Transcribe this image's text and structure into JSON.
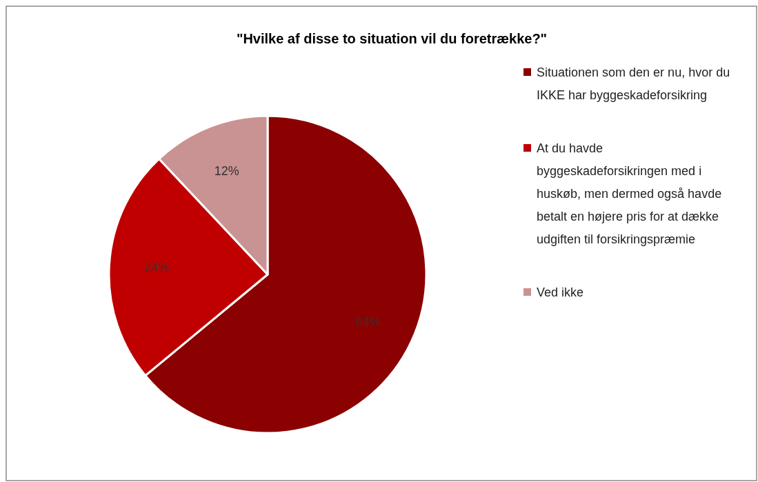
{
  "chart_data": {
    "type": "pie",
    "title": "\"Hvilke af disse to situation vil du foretrække?\"",
    "categories": [
      "Situationen som den er nu, hvor du IKKE har byggeskadeforsikring",
      "At du havde byggeskadeforsikringen med i huskøb, men dermed også havde betalt en højere pris for at dække udgiften til forsikringspræmie",
      "Ved ikke"
    ],
    "values": [
      64,
      24,
      12
    ],
    "value_labels": [
      "64%",
      "24%",
      "12%"
    ],
    "colors": [
      "#8b0000",
      "#c00000",
      "#c99393"
    ],
    "legend": "right"
  }
}
